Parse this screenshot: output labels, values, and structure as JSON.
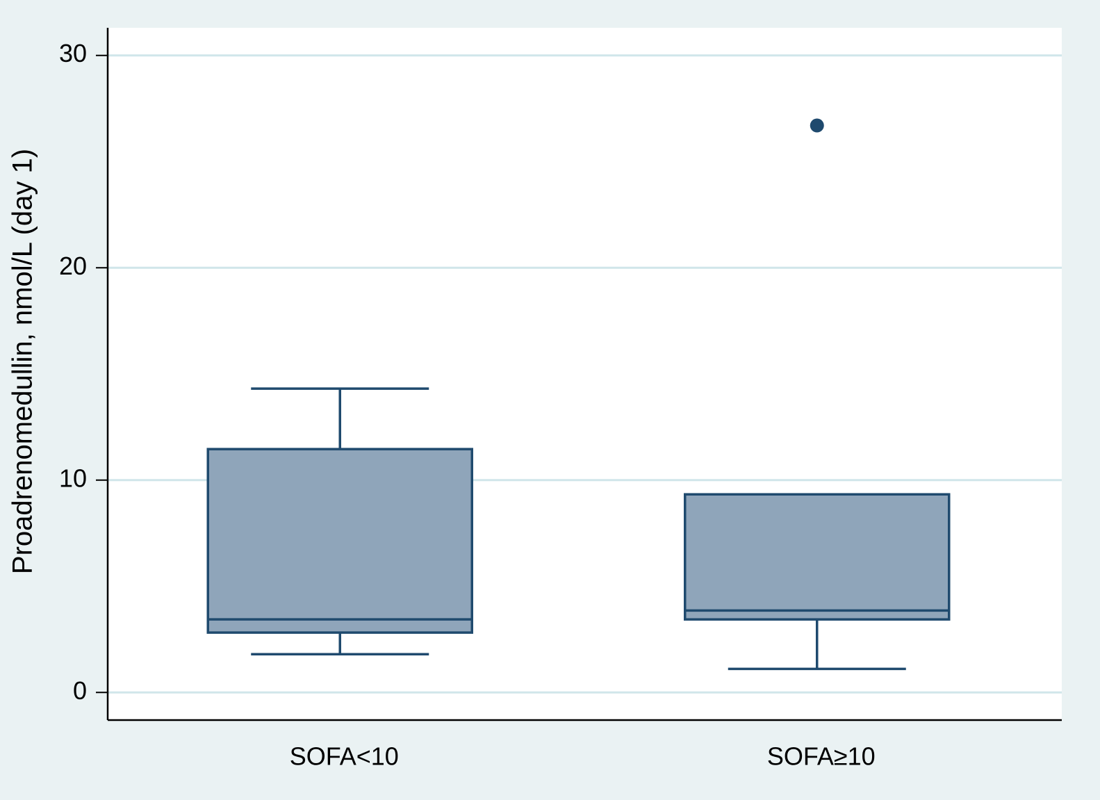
{
  "chart_data": {
    "type": "box",
    "y_label": "Proadrenomedullin, nmol/L (day 1)",
    "categories": [
      "SOFA<10",
      "SOFA≥10"
    ],
    "boxes": [
      {
        "min": 1.8,
        "q1": 2.82,
        "median": 3.44,
        "q3": 11.46,
        "max": 14.31,
        "outliers": []
      },
      {
        "min": 1.11,
        "q1": 3.44,
        "median": 3.86,
        "q3": 9.33,
        "max": 9.33,
        "outliers": [
          26.7
        ]
      }
    ],
    "color": "#8fa5ba",
    "edge_color": "#1f4a6e",
    "ylim": [
      -1.3,
      31.3
    ],
    "yticks": [
      0,
      10,
      20,
      30
    ],
    "grid": true
  }
}
